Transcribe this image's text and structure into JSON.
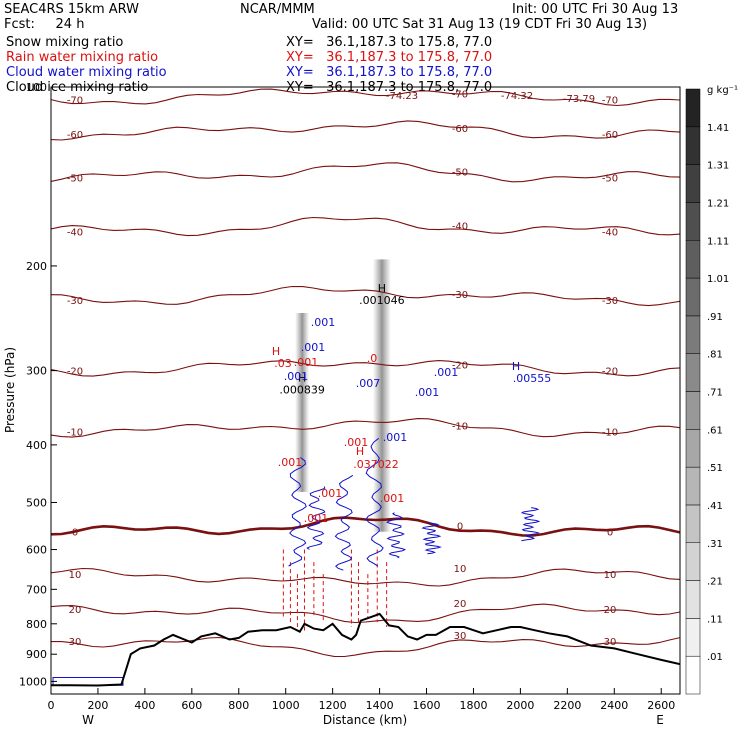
{
  "header": {
    "model": "SEAC4RS 15km ARW",
    "forecast": "Fcst:     24 h",
    "org": "NCAR/MMM",
    "init": "Init: 00 UTC Fri 30 Aug 13",
    "valid": "Valid: 00 UTC Sat 31 Aug 13 (19 CDT Fri 30 Aug 13)",
    "fields": [
      {
        "name": "Snow mixing ratio",
        "xy": "XY=   36.1,187.3 to 175.8, 77.0",
        "color": "#000000"
      },
      {
        "name": "Rain water mixing ratio",
        "xy": "XY=   36.1,187.3 to 175.8, 77.0",
        "color": "#dd1111"
      },
      {
        "name": "Cloud water mixing ratio",
        "xy": "XY=   36.1,187.3 to 175.8, 77.0",
        "color": "#1111cc"
      },
      {
        "name": "Cloud ice mixing ratio",
        "xy": "XY=   36.1,187.3 to 175.8, 77.0",
        "color": "#000000"
      }
    ]
  },
  "chart_data": {
    "type": "cross-section",
    "xlabel": "Distance (km)",
    "ylabel": "Pressure (hPa)",
    "xlim": [
      0,
      2680
    ],
    "ylim": [
      1050,
      100
    ],
    "y_scale": "log",
    "x_ticks": [
      "0",
      "200",
      "400",
      "600",
      "800",
      "1000",
      "1200",
      "1400",
      "1600",
      "1800",
      "2000",
      "2200",
      "2400",
      "2600"
    ],
    "y_ticks": [
      "100",
      "200",
      "300",
      "400",
      "500",
      "600",
      "700",
      "800",
      "900",
      "1000"
    ],
    "endpoints": {
      "left": "W",
      "right": "E"
    },
    "terrain": {
      "x": [
        0,
        80,
        200,
        300,
        340,
        380,
        440,
        480,
        520,
        600,
        640,
        700,
        760,
        800,
        840,
        900,
        960,
        1020,
        1060,
        1080,
        1120,
        1160,
        1200,
        1240,
        1280,
        1300,
        1320,
        1360,
        1400,
        1440,
        1480,
        1520,
        1560,
        1600,
        1640,
        1700,
        1760,
        1840,
        1900,
        1960,
        2000,
        2060,
        2120,
        2200,
        2300,
        2400,
        2500,
        2600,
        2680
      ],
      "p": [
        1015,
        1015,
        1016,
        1012,
        900,
        880,
        870,
        850,
        835,
        860,
        840,
        830,
        850,
        845,
        825,
        820,
        820,
        810,
        825,
        800,
        815,
        820,
        800,
        835,
        850,
        835,
        790,
        780,
        770,
        805,
        810,
        840,
        850,
        835,
        835,
        810,
        810,
        830,
        820,
        810,
        810,
        820,
        830,
        840,
        870,
        880,
        900,
        920,
        935
      ]
    },
    "temperature_levels": [
      "-70",
      "-60",
      "-50",
      "-40",
      "-30",
      "-20",
      "-10",
      "0",
      "10",
      "20",
      "30"
    ],
    "extreme_labels": [
      "-74.23",
      "-74.32",
      "-73.79"
    ],
    "legend": {
      "units": "g kg⁻¹",
      "labels": [
        ".01",
        ".11",
        ".21",
        ".31",
        ".41",
        ".51",
        ".61",
        ".71",
        ".81",
        ".91",
        "1.01",
        "1.11",
        "1.21",
        "1.31",
        "1.41"
      ]
    },
    "snow_max": [
      {
        "label": "H",
        "value": ".000839",
        "x": 1070,
        "p": 325
      },
      {
        "label": "H",
        "value": ".001046",
        "x": 1410,
        "p": 230
      }
    ],
    "rain_labels": [
      ".001",
      ".001",
      ".001",
      ".001",
      "H",
      ".037022",
      ".001",
      "H",
      ".03",
      ".001",
      ".0"
    ],
    "cloud_labels": [
      ".001",
      ".001",
      ".007",
      ".001",
      ".001",
      ".001",
      ".001",
      "H",
      ".00555"
    ]
  }
}
